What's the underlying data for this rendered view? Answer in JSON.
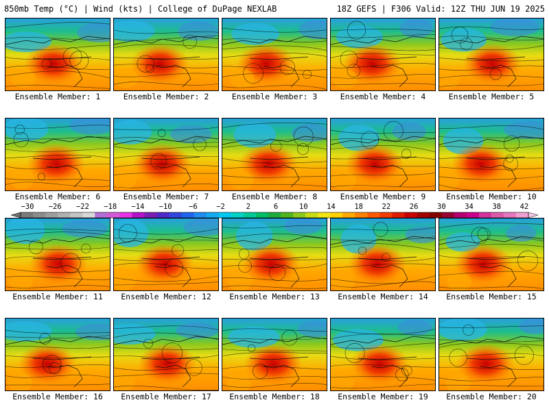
{
  "header": {
    "left": "850mb Temp (°C) | Wind (kts) | College of DuPage NEXLAB",
    "right": "18Z GEFS | F306 Valid: 12Z THU JUN 19 2025"
  },
  "members": [
    "Ensemble Member: 1",
    "Ensemble Member: 2",
    "Ensemble Member: 3",
    "Ensemble Member: 4",
    "Ensemble Member: 5",
    "Ensemble Member: 6",
    "Ensemble Member: 7",
    "Ensemble Member: 8",
    "Ensemble Member: 9",
    "Ensemble Member: 10",
    "Ensemble Member: 11",
    "Ensemble Member: 12",
    "Ensemble Member: 13",
    "Ensemble Member: 14",
    "Ensemble Member: 15",
    "Ensemble Member: 16",
    "Ensemble Member: 17",
    "Ensemble Member: 18",
    "Ensemble Member: 19",
    "Ensemble Member: 20"
  ],
  "colorbar": {
    "labels": [
      "−30",
      "−26",
      "−22",
      "−18",
      "−14",
      "−10",
      "−6",
      "−2",
      "2",
      "6",
      "10",
      "14",
      "18",
      "22",
      "26",
      "30",
      "34",
      "38",
      "42"
    ],
    "colors": [
      "#7a7a7a",
      "#8c8c8c",
      "#9e9e9e",
      "#b0b0b0",
      "#c4c4c4",
      "#d8d8d8",
      "#b46ed6",
      "#d25ad8",
      "#e632e6",
      "#b414c8",
      "#7a1eb4",
      "#5028c8",
      "#3246dc",
      "#1e64f0",
      "#1e8cf0",
      "#14aaf0",
      "#00c8f0",
      "#00d2c8",
      "#00c896",
      "#00be64",
      "#1eaa3c",
      "#50b41e",
      "#8cc81e",
      "#c8dc14",
      "#f0e614",
      "#ffd200",
      "#ffaa00",
      "#ff8200",
      "#ff5a00",
      "#f03c00",
      "#dc1e00",
      "#c80000",
      "#a00000",
      "#820000",
      "#960032",
      "#b4006e",
      "#c8008c",
      "#d2329c",
      "#dc5aaa",
      "#e678be",
      "#f0a0d2"
    ]
  }
}
